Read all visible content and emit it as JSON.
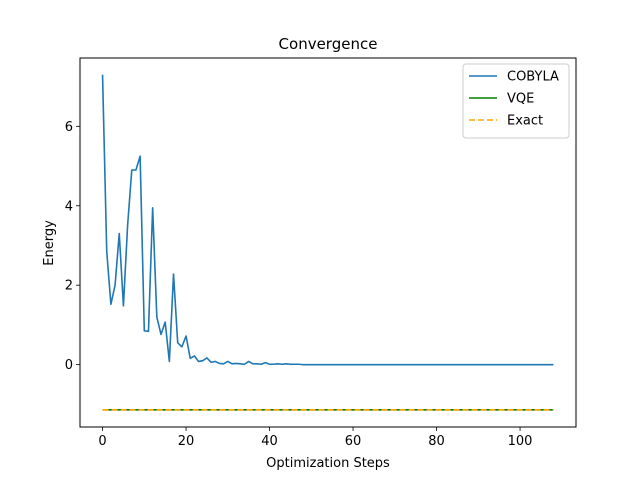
{
  "chart_data": {
    "type": "line",
    "title": "Convergence",
    "xlabel": "Optimization Steps",
    "ylabel": "Energy",
    "xlim": [
      -5.4,
      113.4
    ],
    "ylim": [
      -1.57,
      7.72
    ],
    "xticks": [
      0,
      20,
      40,
      60,
      80,
      100
    ],
    "yticks": [
      0,
      2,
      4,
      6
    ],
    "grid": false,
    "legend_position": "top-right",
    "series": [
      {
        "name": "COBYLA",
        "color": "#1f77b4",
        "style": "solid",
        "x": [
          0,
          1,
          2,
          3,
          4,
          5,
          6,
          7,
          8,
          9,
          10,
          11,
          12,
          13,
          14,
          15,
          16,
          17,
          18,
          19,
          20,
          21,
          22,
          23,
          24,
          25,
          26,
          27,
          28,
          29,
          30,
          31,
          32,
          33,
          34,
          35,
          36,
          37,
          38,
          39,
          40,
          41,
          42,
          43,
          44,
          45,
          46,
          47,
          48,
          49,
          50,
          108
        ],
        "y": [
          7.3,
          2.85,
          1.52,
          2.0,
          3.3,
          1.48,
          3.5,
          4.9,
          4.9,
          5.25,
          0.85,
          0.84,
          3.95,
          1.2,
          0.76,
          1.07,
          0.08,
          2.28,
          0.55,
          0.45,
          0.72,
          0.16,
          0.22,
          0.08,
          0.1,
          0.17,
          0.06,
          0.08,
          0.03,
          0.02,
          0.08,
          0.02,
          0.03,
          0.02,
          0.01,
          0.08,
          0.02,
          0.02,
          0.01,
          0.05,
          0.01,
          0.01,
          0.02,
          0.01,
          0.02,
          0.01,
          0.01,
          0.01,
          0.0,
          0.0,
          0.0,
          0.0
        ]
      },
      {
        "name": "VQE",
        "color": "#008000",
        "style": "solid",
        "x": [
          0,
          108
        ],
        "y": [
          -1.137,
          -1.137
        ]
      },
      {
        "name": "Exact",
        "color": "#ffa500",
        "style": "dashed",
        "x": [
          0,
          108
        ],
        "y": [
          -1.137,
          -1.137
        ]
      }
    ]
  }
}
